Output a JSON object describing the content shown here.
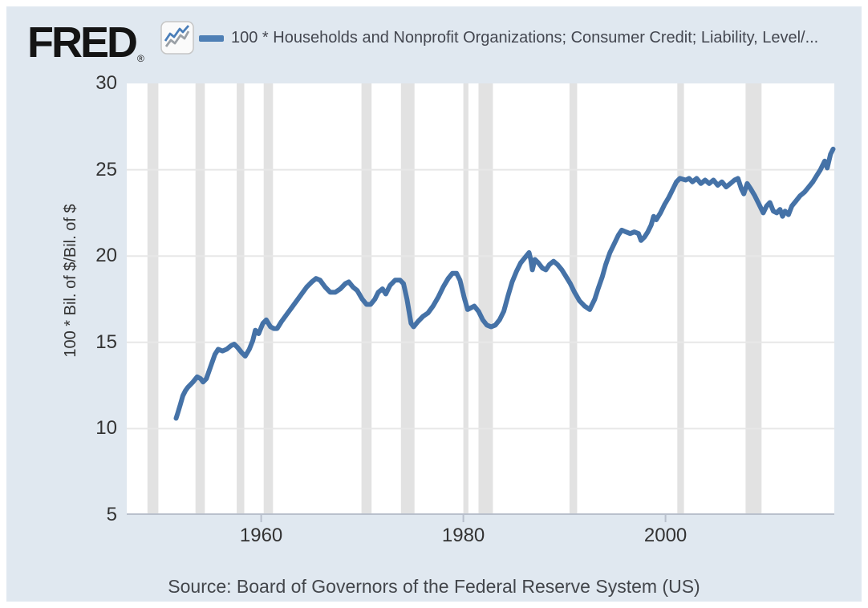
{
  "header": {
    "logo_text": "FRED",
    "logo_registered": "®",
    "legend_series_label": "100 * Households and Nonprofit Organizations; Consumer Credit; Liability, Level/..."
  },
  "source_bar": {
    "text": "Source: Board of Governors of the Federal Reserve System (US)"
  },
  "colors": {
    "canvas_bg": "#e0e8f0",
    "plot_bg": "#ffffff",
    "line": "#4572a7",
    "legend_swatch": "#4e7fb5",
    "recession_band": "#e2e2e2",
    "gridline": "#e7e7e7",
    "axis": "#b9c0cc",
    "tick_text": "#333333",
    "title_text": "#444750",
    "logo_text": "#141414",
    "icon_line_blue": "#4a7eb9",
    "icon_line_gray": "#9aa0a6"
  },
  "chart_data": {
    "type": "line",
    "title": "100 * Households and Nonprofit Organizations; Consumer Credit; Liability, Level/...",
    "xlabel": "",
    "ylabel": "100 * Bil. of $/Bil. of $",
    "grid": true,
    "legend_position": "top",
    "x_domain": [
      1946.7,
      2016.7
    ],
    "y_domain": [
      5,
      30
    ],
    "y_ticks": [
      30,
      25,
      20,
      15,
      10,
      5
    ],
    "gridlines_y": [
      25,
      20,
      15,
      10
    ],
    "x_ticks": [
      1960,
      1980,
      2000
    ],
    "recessions": [
      [
        1948.75,
        1949.83
      ],
      [
        1953.5,
        1954.42
      ],
      [
        1957.58,
        1958.33
      ],
      [
        1960.25,
        1961.17
      ],
      [
        1969.92,
        1970.92
      ],
      [
        1973.83,
        1975.17
      ],
      [
        1980.0,
        1980.5
      ],
      [
        1981.5,
        1982.92
      ],
      [
        1990.5,
        1991.25
      ],
      [
        2001.17,
        2001.83
      ],
      [
        2007.92,
        2009.5
      ]
    ],
    "series": [
      {
        "name": "100 * Households and Nonprofit Organizations; Consumer Credit; Liability, Level/...",
        "x": [
          1951.58,
          1951.75,
          1952.0,
          1952.25,
          1952.5,
          1952.75,
          1953.25,
          1953.67,
          1954.0,
          1954.25,
          1954.58,
          1955.0,
          1955.42,
          1955.75,
          1956.17,
          1956.58,
          1957.0,
          1957.33,
          1957.67,
          1958.08,
          1958.42,
          1958.83,
          1959.17,
          1959.42,
          1959.75,
          1960.17,
          1960.5,
          1960.92,
          1961.25,
          1961.58,
          1962.0,
          1962.5,
          1963.0,
          1963.5,
          1964.0,
          1964.5,
          1965.0,
          1965.42,
          1965.83,
          1966.33,
          1966.83,
          1967.33,
          1967.83,
          1968.33,
          1968.67,
          1969.08,
          1969.5,
          1970.0,
          1970.42,
          1970.83,
          1971.25,
          1971.58,
          1972.0,
          1972.33,
          1972.75,
          1973.25,
          1973.75,
          1974.08,
          1974.42,
          1974.83,
          1975.08,
          1975.5,
          1976.0,
          1976.5,
          1977.0,
          1977.5,
          1978.0,
          1978.5,
          1978.92,
          1979.33,
          1979.67,
          1980.08,
          1980.42,
          1980.75,
          1981.08,
          1981.5,
          1981.92,
          1982.33,
          1982.75,
          1983.17,
          1983.58,
          1984.0,
          1984.42,
          1984.83,
          1985.25,
          1985.67,
          1986.08,
          1986.5,
          1986.67,
          1986.83,
          1987.08,
          1987.42,
          1987.83,
          1988.17,
          1988.5,
          1988.92,
          1989.33,
          1989.75,
          1990.17,
          1990.58,
          1991.0,
          1991.5,
          1992.0,
          1992.5,
          1993.0,
          1993.33,
          1993.75,
          1994.08,
          1994.5,
          1994.92,
          1995.33,
          1995.67,
          1996.08,
          1996.5,
          1996.92,
          1997.33,
          1997.58,
          1997.92,
          1998.25,
          1998.58,
          1998.83,
          1999.08,
          1999.5,
          1999.92,
          2000.33,
          2000.75,
          2001.08,
          2001.42,
          2002.0,
          2002.33,
          2002.67,
          2003.08,
          2003.5,
          2003.92,
          2004.33,
          2004.75,
          2005.17,
          2005.58,
          2006.0,
          2006.42,
          2006.83,
          2007.17,
          2007.5,
          2007.75,
          2008.08,
          2008.42,
          2008.83,
          2009.25,
          2009.67,
          2010.0,
          2010.33,
          2010.67,
          2011.0,
          2011.33,
          2011.58,
          2011.83,
          2012.17,
          2012.5,
          2012.92,
          2013.33,
          2013.75,
          2014.17,
          2014.58,
          2015.0,
          2015.33,
          2015.75,
          2016.0,
          2016.33,
          2016.58
        ],
        "y": [
          10.6,
          10.9,
          11.4,
          11.9,
          12.2,
          12.4,
          12.7,
          13.0,
          12.9,
          12.7,
          12.9,
          13.6,
          14.3,
          14.6,
          14.5,
          14.6,
          14.8,
          14.9,
          14.7,
          14.4,
          14.2,
          14.6,
          15.1,
          15.7,
          15.5,
          16.1,
          16.3,
          15.9,
          15.8,
          15.8,
          16.2,
          16.6,
          17.0,
          17.4,
          17.8,
          18.2,
          18.5,
          18.7,
          18.6,
          18.2,
          17.9,
          17.9,
          18.1,
          18.4,
          18.5,
          18.2,
          18.0,
          17.5,
          17.2,
          17.2,
          17.5,
          17.9,
          18.1,
          17.8,
          18.3,
          18.6,
          18.6,
          18.4,
          17.5,
          16.1,
          15.9,
          16.2,
          16.5,
          16.7,
          17.1,
          17.6,
          18.2,
          18.7,
          19.0,
          19.0,
          18.6,
          17.6,
          16.9,
          17.0,
          17.1,
          16.8,
          16.3,
          16.0,
          15.9,
          16.0,
          16.3,
          16.8,
          17.7,
          18.5,
          19.1,
          19.6,
          19.9,
          20.2,
          19.8,
          19.2,
          19.8,
          19.6,
          19.3,
          19.2,
          19.5,
          19.7,
          19.5,
          19.2,
          18.8,
          18.4,
          17.9,
          17.4,
          17.1,
          16.9,
          17.5,
          18.1,
          18.8,
          19.5,
          20.2,
          20.7,
          21.2,
          21.5,
          21.4,
          21.3,
          21.4,
          21.3,
          20.9,
          21.1,
          21.4,
          21.8,
          22.3,
          22.1,
          22.5,
          23.0,
          23.4,
          23.9,
          24.3,
          24.5,
          24.4,
          24.5,
          24.3,
          24.5,
          24.2,
          24.4,
          24.2,
          24.4,
          24.1,
          24.3,
          24.0,
          24.2,
          24.4,
          24.5,
          23.9,
          23.6,
          24.2,
          23.9,
          23.5,
          23.0,
          22.5,
          22.9,
          23.1,
          22.6,
          22.5,
          22.7,
          22.3,
          22.6,
          22.4,
          22.9,
          23.2,
          23.5,
          23.7,
          24.0,
          24.3,
          24.7,
          25.0,
          25.5,
          25.1,
          25.9,
          26.2
        ]
      }
    ]
  }
}
